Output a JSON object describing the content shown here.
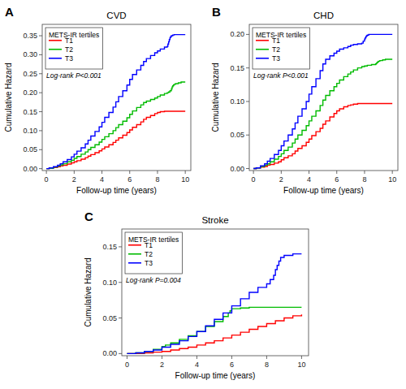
{
  "chart_data": [
    {
      "type": "step",
      "title": "CVD",
      "panel_label": "A",
      "annotations": [
        "Log-rank P<0.001"
      ],
      "xlabel": "Follow-up time (years)",
      "ylabel": "Cumulative Hazard",
      "legend_title": "METS-IR tertiles",
      "legend": "upper left",
      "grid": false,
      "xlim": [
        -0.3,
        10.4
      ],
      "ylim": [
        -0.005,
        0.38
      ],
      "xticks": [
        0,
        2,
        4,
        6,
        8,
        10
      ],
      "yticks": [
        {
          "value": 0.0,
          "label": "0.00"
        },
        0.05,
        {
          "value": 0.1,
          "label": "0.10"
        },
        0.15,
        {
          "value": 0.2,
          "label": "0.20"
        },
        0.25,
        {
          "value": 0.3,
          "label": "0.30"
        },
        0.35
      ],
      "series": [
        {
          "name": "T1",
          "color": "#FF0000",
          "x": [
            0,
            0.2,
            0.5,
            0.8,
            1.0,
            1.2,
            1.5,
            1.8,
            2.0,
            2.2,
            2.5,
            2.8,
            3.0,
            3.2,
            3.5,
            3.8,
            4.0,
            4.2,
            4.5,
            4.8,
            5.0,
            5.2,
            5.5,
            5.8,
            6.0,
            6.2,
            6.5,
            6.8,
            7.0,
            7.2,
            7.5,
            7.8,
            8.0,
            8.2,
            8.5,
            8.7,
            8.8,
            8.9,
            9.0,
            9.1,
            9.2,
            9.3,
            9.5,
            9.7,
            9.9,
            10.0
          ],
          "values": [
            0,
            0.001,
            0.003,
            0.005,
            0.007,
            0.009,
            0.012,
            0.015,
            0.018,
            0.021,
            0.025,
            0.029,
            0.033,
            0.037,
            0.042,
            0.047,
            0.052,
            0.057,
            0.063,
            0.069,
            0.075,
            0.081,
            0.088,
            0.095,
            0.102,
            0.109,
            0.116,
            0.123,
            0.13,
            0.135,
            0.14,
            0.145,
            0.148,
            0.15,
            0.151,
            0.151,
            0.151,
            0.151,
            0.151,
            0.151,
            0.151,
            0.151,
            0.151,
            0.151,
            0.151,
            0.151
          ]
        },
        {
          "name": "T2",
          "color": "#00BB00",
          "x": [
            0,
            0.2,
            0.5,
            0.8,
            1.0,
            1.2,
            1.5,
            1.8,
            2.0,
            2.2,
            2.5,
            2.8,
            3.0,
            3.2,
            3.5,
            3.8,
            4.0,
            4.2,
            4.5,
            4.8,
            5.0,
            5.2,
            5.5,
            5.8,
            6.0,
            6.2,
            6.5,
            6.8,
            7.0,
            7.2,
            7.5,
            7.8,
            8.0,
            8.2,
            8.5,
            8.7,
            8.8,
            8.9,
            9.0,
            9.05,
            9.1,
            9.15,
            9.2,
            9.3,
            9.5,
            9.7,
            10.0
          ],
          "values": [
            0,
            0.001,
            0.004,
            0.007,
            0.01,
            0.013,
            0.018,
            0.022,
            0.027,
            0.032,
            0.038,
            0.044,
            0.05,
            0.056,
            0.063,
            0.07,
            0.077,
            0.084,
            0.092,
            0.1,
            0.108,
            0.116,
            0.125,
            0.134,
            0.143,
            0.152,
            0.161,
            0.168,
            0.174,
            0.178,
            0.182,
            0.186,
            0.19,
            0.194,
            0.198,
            0.2,
            0.202,
            0.205,
            0.21,
            0.215,
            0.218,
            0.22,
            0.222,
            0.224,
            0.226,
            0.228,
            0.228
          ]
        },
        {
          "name": "T3",
          "color": "#0000FF",
          "x": [
            0,
            0.2,
            0.5,
            0.8,
            1.0,
            1.2,
            1.5,
            1.8,
            2.0,
            2.2,
            2.5,
            2.8,
            3.0,
            3.2,
            3.5,
            3.8,
            4.0,
            4.2,
            4.5,
            4.8,
            5.0,
            5.2,
            5.5,
            5.8,
            6.0,
            6.2,
            6.5,
            6.8,
            7.0,
            7.2,
            7.5,
            7.8,
            8.0,
            8.2,
            8.5,
            8.7,
            8.75,
            8.8,
            8.85,
            8.9,
            8.95,
            9.0,
            9.1,
            9.2,
            9.3,
            9.5,
            10.0
          ],
          "values": [
            0,
            0.002,
            0.005,
            0.009,
            0.013,
            0.018,
            0.024,
            0.031,
            0.038,
            0.046,
            0.055,
            0.065,
            0.075,
            0.086,
            0.098,
            0.11,
            0.122,
            0.135,
            0.148,
            0.162,
            0.176,
            0.19,
            0.205,
            0.22,
            0.235,
            0.248,
            0.26,
            0.272,
            0.282,
            0.29,
            0.298,
            0.305,
            0.31,
            0.315,
            0.32,
            0.322,
            0.328,
            0.334,
            0.34,
            0.345,
            0.348,
            0.35,
            0.352,
            0.353,
            0.353,
            0.353,
            0.353
          ]
        }
      ]
    },
    {
      "type": "step",
      "title": "CHD",
      "panel_label": "B",
      "annotations": [
        "Log-rank P<0.001"
      ],
      "xlabel": "Follow-up time (years)",
      "ylabel": "Cumulative Hazard",
      "legend_title": "METS-IR tertiles",
      "legend": "upper left",
      "grid": false,
      "xlim": [
        -0.3,
        10.4
      ],
      "ylim": [
        -0.003,
        0.215
      ],
      "xticks": [
        0,
        2,
        4,
        6,
        8,
        10
      ],
      "yticks": [
        {
          "value": 0.0,
          "label": "0.00"
        },
        0.05,
        {
          "value": 0.1,
          "label": "0.10"
        },
        0.15,
        {
          "value": 0.2,
          "label": "0.20"
        }
      ],
      "series": [
        {
          "name": "T1",
          "color": "#FF0000",
          "x": [
            0,
            0.2,
            0.5,
            0.8,
            1.0,
            1.2,
            1.5,
            1.8,
            2.0,
            2.2,
            2.5,
            2.8,
            3.0,
            3.2,
            3.5,
            3.8,
            4.0,
            4.2,
            4.5,
            4.8,
            5.0,
            5.2,
            5.5,
            5.8,
            6.0,
            6.2,
            6.5,
            6.8,
            7.0,
            7.2,
            7.5,
            7.8,
            8.0,
            8.2,
            8.5,
            8.8,
            9.0,
            9.2,
            9.5,
            9.8,
            10.0
          ],
          "values": [
            0,
            0.001,
            0.002,
            0.003,
            0.005,
            0.006,
            0.008,
            0.01,
            0.013,
            0.016,
            0.019,
            0.022,
            0.026,
            0.03,
            0.034,
            0.039,
            0.044,
            0.049,
            0.055,
            0.06,
            0.066,
            0.071,
            0.077,
            0.082,
            0.086,
            0.089,
            0.092,
            0.094,
            0.095,
            0.096,
            0.097,
            0.097,
            0.097,
            0.097,
            0.097,
            0.097,
            0.097,
            0.097,
            0.097,
            0.097,
            0.097
          ]
        },
        {
          "name": "T2",
          "color": "#00BB00",
          "x": [
            0,
            0.2,
            0.5,
            0.8,
            1.0,
            1.2,
            1.5,
            1.8,
            2.0,
            2.2,
            2.5,
            2.8,
            3.0,
            3.2,
            3.5,
            3.8,
            4.0,
            4.2,
            4.5,
            4.8,
            5.0,
            5.2,
            5.5,
            5.8,
            6.0,
            6.2,
            6.5,
            6.8,
            7.0,
            7.2,
            7.5,
            7.8,
            8.0,
            8.2,
            8.5,
            8.7,
            8.8,
            8.85,
            8.9,
            8.95,
            9.0,
            9.1,
            9.3,
            9.5,
            10.0
          ],
          "values": [
            0,
            0.001,
            0.003,
            0.005,
            0.007,
            0.01,
            0.014,
            0.018,
            0.022,
            0.027,
            0.032,
            0.038,
            0.044,
            0.05,
            0.057,
            0.064,
            0.071,
            0.078,
            0.086,
            0.094,
            0.102,
            0.109,
            0.116,
            0.122,
            0.127,
            0.132,
            0.137,
            0.141,
            0.144,
            0.147,
            0.15,
            0.152,
            0.153,
            0.154,
            0.155,
            0.155,
            0.156,
            0.157,
            0.158,
            0.159,
            0.16,
            0.161,
            0.162,
            0.163,
            0.163
          ]
        },
        {
          "name": "T3",
          "color": "#0000FF",
          "x": [
            0,
            0.2,
            0.5,
            0.8,
            1.0,
            1.2,
            1.5,
            1.8,
            2.0,
            2.2,
            2.5,
            2.8,
            3.0,
            3.2,
            3.5,
            3.8,
            4.0,
            4.2,
            4.5,
            4.8,
            5.0,
            5.2,
            5.5,
            5.8,
            6.0,
            6.2,
            6.5,
            6.8,
            7.0,
            7.2,
            7.5,
            7.8,
            7.9,
            8.0,
            8.05,
            8.1,
            8.15,
            8.2,
            8.3,
            8.5,
            9.0,
            9.5,
            10.0
          ],
          "values": [
            0,
            0.001,
            0.004,
            0.007,
            0.011,
            0.015,
            0.021,
            0.027,
            0.034,
            0.041,
            0.05,
            0.059,
            0.068,
            0.078,
            0.089,
            0.1,
            0.111,
            0.122,
            0.134,
            0.146,
            0.156,
            0.163,
            0.168,
            0.172,
            0.175,
            0.178,
            0.18,
            0.182,
            0.184,
            0.185,
            0.186,
            0.187,
            0.19,
            0.193,
            0.195,
            0.197,
            0.198,
            0.199,
            0.2,
            0.2,
            0.2,
            0.2,
            0.2
          ]
        }
      ]
    },
    {
      "type": "step",
      "title": "Stroke",
      "panel_label": "C",
      "annotations": [
        "Log-rank P=0.004"
      ],
      "xlabel": "Follow-up time (years)",
      "ylabel": "Cumulative Hazard",
      "legend_title": "METS-IR tertiles",
      "legend": "upper left",
      "grid": false,
      "xlim": [
        -0.3,
        10.4
      ],
      "ylim": [
        -0.003,
        0.175
      ],
      "xticks": [
        0,
        2,
        4,
        6,
        8,
        10
      ],
      "yticks": [
        {
          "value": 0.0,
          "label": "0.00"
        },
        0.05,
        {
          "value": 0.1,
          "label": "0.10"
        },
        0.15
      ],
      "series": [
        {
          "name": "T1",
          "color": "#FF0000",
          "x": [
            0,
            0.5,
            1.0,
            1.5,
            2.0,
            2.5,
            3.0,
            3.5,
            4.0,
            4.5,
            5.0,
            5.5,
            6.0,
            6.5,
            7.0,
            7.5,
            8.0,
            8.5,
            9.0,
            9.5,
            10.0
          ],
          "values": [
            0,
            0.0,
            0.001,
            0.002,
            0.003,
            0.005,
            0.007,
            0.009,
            0.012,
            0.015,
            0.018,
            0.022,
            0.026,
            0.03,
            0.034,
            0.038,
            0.042,
            0.046,
            0.05,
            0.053,
            0.055
          ]
        },
        {
          "name": "T2",
          "color": "#00BB00",
          "x": [
            0,
            0.5,
            1.0,
            1.5,
            2.0,
            2.2,
            2.5,
            3.0,
            3.5,
            4.0,
            4.5,
            5.0,
            5.5,
            5.8,
            5.9,
            6.0,
            6.5,
            7.0,
            7.5,
            8.0,
            8.5,
            9.0,
            9.5,
            10.0
          ],
          "values": [
            0,
            0.001,
            0.003,
            0.006,
            0.01,
            0.012,
            0.015,
            0.02,
            0.025,
            0.031,
            0.038,
            0.045,
            0.052,
            0.057,
            0.06,
            0.063,
            0.064,
            0.065,
            0.065,
            0.065,
            0.065,
            0.065,
            0.065,
            0.065
          ]
        },
        {
          "name": "T3",
          "color": "#0000FF",
          "x": [
            0,
            0.5,
            1.0,
            1.5,
            2.0,
            2.5,
            3.0,
            3.5,
            4.0,
            4.5,
            5.0,
            5.5,
            6.0,
            6.5,
            7.0,
            7.5,
            8.0,
            8.2,
            8.4,
            8.5,
            8.6,
            8.7,
            8.8,
            9.0,
            9.5,
            10.0
          ],
          "values": [
            0,
            0.001,
            0.003,
            0.005,
            0.009,
            0.013,
            0.018,
            0.024,
            0.031,
            0.039,
            0.048,
            0.057,
            0.067,
            0.077,
            0.086,
            0.093,
            0.098,
            0.104,
            0.11,
            0.118,
            0.124,
            0.13,
            0.135,
            0.138,
            0.14,
            0.14
          ]
        }
      ]
    }
  ]
}
